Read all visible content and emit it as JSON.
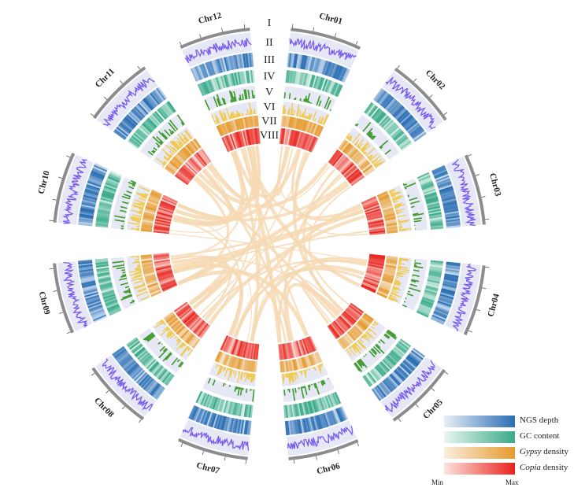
{
  "chromosomes": [
    "Chr01",
    "Chr02",
    "Chr03",
    "Chr04",
    "Chr05",
    "Chr06",
    "Chr07",
    "Chr08",
    "Chr09",
    "Chr10",
    "Chr11",
    "Chr12"
  ],
  "track_labels": [
    "I",
    "II",
    "III",
    "IV",
    "V",
    "VI",
    "VII",
    "VIII"
  ],
  "legend": {
    "items": [
      {
        "label": "NGS depth",
        "italic": "",
        "suffix": "",
        "from": "#e8eef8",
        "to": "#2a6eb3"
      },
      {
        "label": "GC content",
        "italic": "",
        "suffix": "",
        "from": "#e9f6f1",
        "to": "#3aaa8a"
      },
      {
        "label": "",
        "italic": "Gypsy",
        "suffix": " density",
        "from": "#fbeede",
        "to": "#e59a2e"
      },
      {
        "label": "",
        "italic": "Copia",
        "suffix": " density",
        "from": "#fde3df",
        "to": "#e8231b"
      }
    ],
    "min_label": "Min",
    "max_label": "Max"
  },
  "colors": {
    "ideogram": "#8c8c8c",
    "depth_line": "#7b5cf0",
    "track_bg": "#e6e9f5",
    "ngs": "#2a6eb3",
    "gc": "#3aaa8a",
    "repeat_hist": "#3e9a2c",
    "gypsy_hist": "#f2c94c",
    "gypsy_heat": "#e59a2e",
    "copia_heat": "#e8231b",
    "links": "#f6d9b4"
  }
}
